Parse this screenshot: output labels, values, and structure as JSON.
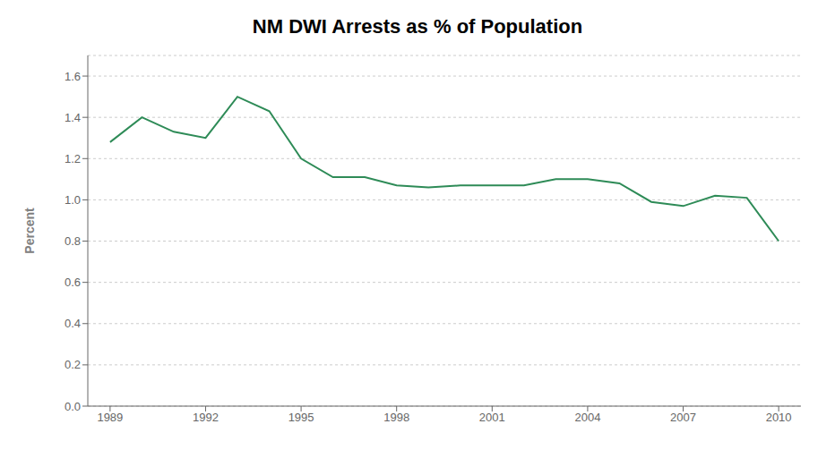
{
  "chart_data": {
    "type": "line",
    "title": "NM DWI Arrests as % of Population",
    "ylabel": "Percent",
    "x": [
      1989,
      1990,
      1991,
      1992,
      1993,
      1994,
      1995,
      1996,
      1997,
      1998,
      1999,
      2000,
      2001,
      2002,
      2003,
      2004,
      2005,
      2006,
      2007,
      2008,
      2009,
      2010
    ],
    "values": [
      1.28,
      1.4,
      1.33,
      1.3,
      1.5,
      1.43,
      1.2,
      1.11,
      1.11,
      1.07,
      1.06,
      1.07,
      1.07,
      1.07,
      1.1,
      1.1,
      1.08,
      0.99,
      0.97,
      1.02,
      1.01,
      0.8
    ],
    "color": "#2e8b57",
    "xlim": [
      1988.3,
      2010.7
    ],
    "xticks": [
      1989,
      1992,
      1995,
      1998,
      2001,
      2004,
      2007,
      2010
    ],
    "ylim": [
      0.0,
      1.7
    ],
    "yticks": [
      {
        "value": 0.0,
        "label": "0.0"
      },
      0.2,
      0.4,
      0.6,
      0.8,
      {
        "value": 1.0,
        "label": "1.0"
      },
      1.2,
      1.4,
      1.6
    ],
    "grid": true
  }
}
